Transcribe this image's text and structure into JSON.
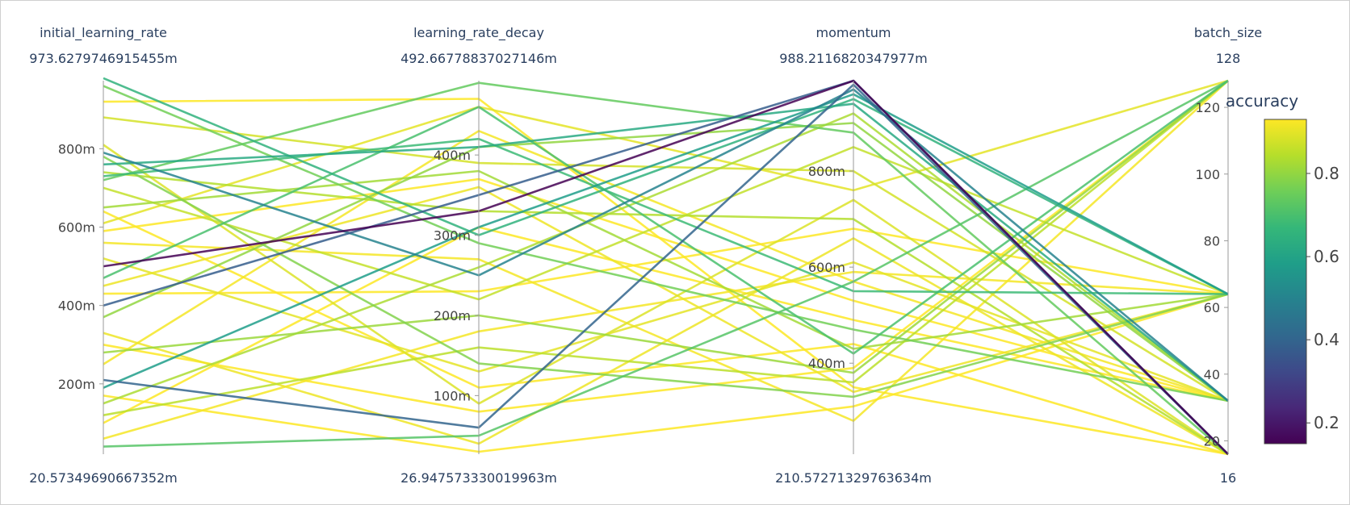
{
  "chart_data": {
    "type": "parallel_coordinates",
    "color_variable": "accuracy",
    "colorscale": "viridis",
    "color_range": [
      0.15,
      0.93
    ],
    "colorbar": {
      "title": "accuracy",
      "ticks": [
        {
          "value": 0.2,
          "label": "0.2"
        },
        {
          "value": 0.4,
          "label": "0.4"
        },
        {
          "value": 0.6,
          "label": "0.6"
        },
        {
          "value": 0.8,
          "label": "0.8"
        }
      ]
    },
    "axes": [
      {
        "name": "initial_learning_rate",
        "range": [
          0.02057349690667352,
          0.9736279746915455
        ],
        "min_label": "20.57349690667352m",
        "max_label": "973.6279746915455m",
        "ticks": [
          {
            "value": 0.2,
            "label": "200m"
          },
          {
            "value": 0.4,
            "label": "400m"
          },
          {
            "value": 0.6,
            "label": "600m"
          },
          {
            "value": 0.8,
            "label": "800m"
          }
        ]
      },
      {
        "name": "learning_rate_decay",
        "range": [
          0.02694757333001996,
          0.4926677883702715
        ],
        "min_label": "26.947573330019963m",
        "max_label": "492.66778837027146m",
        "ticks": [
          {
            "value": 0.1,
            "label": "100m"
          },
          {
            "value": 0.2,
            "label": "200m"
          },
          {
            "value": 0.3,
            "label": "300m"
          },
          {
            "value": 0.4,
            "label": "400m"
          }
        ]
      },
      {
        "name": "momentum",
        "range": [
          0.21057271329763633,
          0.9882116820347977
        ],
        "min_label": "210.57271329763634m",
        "max_label": "988.2116820347977m",
        "ticks": [
          {
            "value": 0.4,
            "label": "400m"
          },
          {
            "value": 0.6,
            "label": "600m"
          },
          {
            "value": 0.8,
            "label": "800m"
          }
        ]
      },
      {
        "name": "batch_size",
        "range": [
          16,
          128
        ],
        "min_label": "16",
        "max_label": "128",
        "ticks": [
          {
            "value": 20,
            "label": "20"
          },
          {
            "value": 40,
            "label": "40"
          },
          {
            "value": 60,
            "label": "60"
          },
          {
            "value": 80,
            "label": "80"
          },
          {
            "value": 100,
            "label": "100"
          },
          {
            "value": 120,
            "label": "120"
          }
        ]
      }
    ],
    "lines": [
      {
        "values": [
          0.5,
          0.33,
          0.988,
          16
        ],
        "accuracy": 0.15
      },
      {
        "values": [
          0.4,
          0.35,
          0.988,
          16
        ],
        "accuracy": 0.38
      },
      {
        "values": [
          0.21,
          0.06,
          0.98,
          16
        ],
        "accuracy": 0.4
      },
      {
        "values": [
          0.79,
          0.25,
          0.97,
          32
        ],
        "accuracy": 0.5
      },
      {
        "values": [
          0.19,
          0.31,
          0.96,
          64
        ],
        "accuracy": 0.58
      },
      {
        "values": [
          0.76,
          0.41,
          0.94,
          32
        ],
        "accuracy": 0.62
      },
      {
        "values": [
          0.98,
          0.3,
          0.95,
          64
        ],
        "accuracy": 0.65
      },
      {
        "values": [
          0.73,
          0.42,
          0.55,
          64
        ],
        "accuracy": 0.68
      },
      {
        "values": [
          0.47,
          0.46,
          0.42,
          128
        ],
        "accuracy": 0.7
      },
      {
        "values": [
          0.04,
          0.05,
          0.57,
          128
        ],
        "accuracy": 0.72
      },
      {
        "values": [
          0.72,
          0.49,
          0.88,
          16
        ],
        "accuracy": 0.74
      },
      {
        "values": [
          0.96,
          0.29,
          0.47,
          32
        ],
        "accuracy": 0.76
      },
      {
        "values": [
          0.78,
          0.14,
          0.33,
          64
        ],
        "accuracy": 0.78
      },
      {
        "values": [
          0.37,
          0.41,
          0.9,
          32
        ],
        "accuracy": 0.8
      },
      {
        "values": [
          0.28,
          0.2,
          0.38,
          128
        ],
        "accuracy": 0.81
      },
      {
        "values": [
          0.65,
          0.38,
          0.43,
          64
        ],
        "accuracy": 0.82
      },
      {
        "values": [
          0.15,
          0.26,
          0.92,
          32
        ],
        "accuracy": 0.83
      },
      {
        "values": [
          0.74,
          0.33,
          0.7,
          16
        ],
        "accuracy": 0.84
      },
      {
        "values": [
          0.12,
          0.16,
          0.36,
          128
        ],
        "accuracy": 0.85
      },
      {
        "values": [
          0.7,
          0.22,
          0.85,
          64
        ],
        "accuracy": 0.86
      },
      {
        "values": [
          0.88,
          0.39,
          0.8,
          32
        ],
        "accuracy": 0.88
      },
      {
        "values": [
          0.81,
          0.09,
          0.74,
          16
        ],
        "accuracy": 0.89
      },
      {
        "values": [
          0.61,
          0.46,
          0.76,
          128
        ],
        "accuracy": 0.9
      },
      {
        "values": [
          0.52,
          0.13,
          0.61,
          32
        ],
        "accuracy": 0.9
      },
      {
        "values": [
          0.45,
          0.36,
          0.34,
          64
        ],
        "accuracy": 0.91
      },
      {
        "values": [
          0.33,
          0.04,
          0.66,
          16
        ],
        "accuracy": 0.91
      },
      {
        "values": [
          0.56,
          0.27,
          0.28,
          128
        ],
        "accuracy": 0.92
      },
      {
        "values": [
          0.25,
          0.43,
          0.57,
          32
        ],
        "accuracy": 0.92
      },
      {
        "values": [
          0.06,
          0.18,
          0.59,
          64
        ],
        "accuracy": 0.92
      },
      {
        "values": [
          0.64,
          0.11,
          0.44,
          16
        ],
        "accuracy": 0.93
      },
      {
        "values": [
          0.1,
          0.31,
          0.49,
          32
        ],
        "accuracy": 0.93
      },
      {
        "values": [
          0.92,
          0.47,
          0.35,
          16
        ],
        "accuracy": 0.93
      },
      {
        "values": [
          0.43,
          0.23,
          0.68,
          64
        ],
        "accuracy": 0.93
      },
      {
        "values": [
          0.3,
          0.08,
          0.39,
          128
        ],
        "accuracy": 0.93
      },
      {
        "values": [
          0.59,
          0.37,
          0.53,
          32
        ],
        "accuracy": 0.93
      },
      {
        "values": [
          0.17,
          0.03,
          0.31,
          64
        ],
        "accuracy": 0.93
      }
    ]
  }
}
